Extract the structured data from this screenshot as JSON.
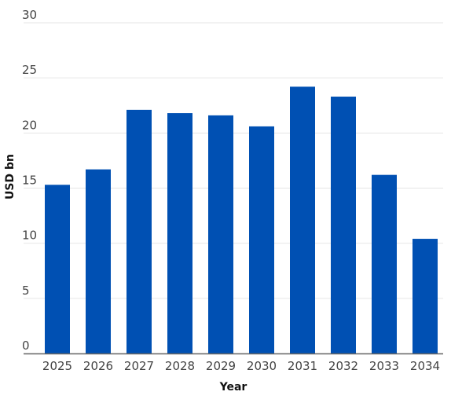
{
  "chart_data": {
    "type": "bar",
    "title": "",
    "xlabel": "Year",
    "ylabel": "USD bn",
    "categories": [
      "2025",
      "2026",
      "2027",
      "2028",
      "2029",
      "2030",
      "2031",
      "2032",
      "2033",
      "2034"
    ],
    "series": [
      {
        "values": [
          15.3,
          16.7,
          22.1,
          21.8,
          21.6,
          20.6,
          24.2,
          23.3,
          16.2,
          10.4
        ]
      }
    ],
    "ylim": [
      0,
      30
    ],
    "yticks": [
      0,
      5,
      10,
      15,
      20,
      25,
      30
    ],
    "grid": true,
    "legend": "none",
    "colors": {
      "bar": "#0050b3",
      "grid": "#e6e6e6",
      "axis": "#666666"
    }
  }
}
